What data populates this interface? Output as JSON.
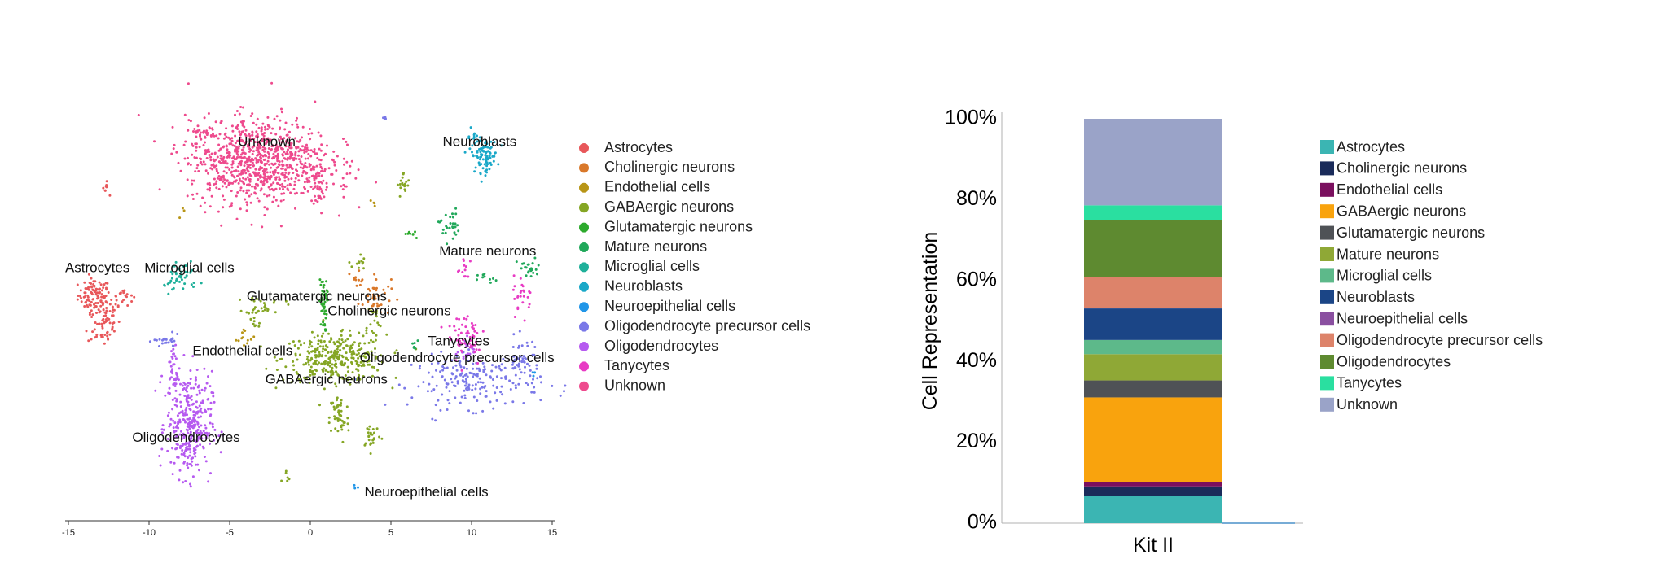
{
  "chart_data": [
    {
      "type": "scatter",
      "title": "",
      "xlabel": "",
      "ylabel": "",
      "xlim": [
        -15,
        15
      ],
      "x_ticks": [
        "-15",
        "-10",
        "-5",
        "0",
        "5",
        "10",
        "15"
      ],
      "legend_position": "right",
      "grid": false,
      "series": [
        {
          "name": "Astrocytes",
          "color": "#E8575A",
          "label": "Astrocytes",
          "clusters": [
            {
              "cx": -13.4,
              "cy": 5.6,
              "sx": 0.5,
              "sy": 0.5,
              "n": 90
            },
            {
              "cx": -12.8,
              "cy": 4.2,
              "sx": 0.5,
              "sy": 0.9,
              "n": 80
            },
            {
              "cx": -11.6,
              "cy": 5.6,
              "sx": 0.3,
              "sy": 0.3,
              "n": 20
            },
            {
              "cx": -12.7,
              "cy": 12.0,
              "sx": 0.1,
              "sy": 0.2,
              "n": 8
            }
          ]
        },
        {
          "name": "Cholinergic neurons",
          "color": "#D9782A",
          "label": "Cholinergic neurons",
          "clusters": [
            {
              "cx": 4.0,
              "cy": 5.5,
              "sx": 0.5,
              "sy": 0.6,
              "n": 40
            },
            {
              "cx": 3.0,
              "cy": 6.8,
              "sx": 0.2,
              "sy": 0.3,
              "n": 10
            }
          ]
        },
        {
          "name": "Endothelial cells",
          "color": "#B89516",
          "label": "Endothelial cells",
          "clusters": [
            {
              "cx": -4.0,
              "cy": 3.0,
              "sx": 0.3,
              "sy": 0.3,
              "n": 12
            },
            {
              "cx": -8.0,
              "cy": 10.6,
              "sx": 0.1,
              "sy": 0.1,
              "n": 3
            },
            {
              "cx": 3.9,
              "cy": 11.0,
              "sx": 0.1,
              "sy": 0.2,
              "n": 4
            }
          ]
        },
        {
          "name": "GABAergic neurons",
          "color": "#85A624",
          "label": "GABAergic neurons",
          "clusters": [
            {
              "cx": 1.5,
              "cy": 1.8,
              "sx": 1.6,
              "sy": 0.7,
              "n": 320
            },
            {
              "cx": 1.8,
              "cy": -1.8,
              "sx": 0.3,
              "sy": 0.8,
              "n": 50
            },
            {
              "cx": 3.8,
              "cy": -2.8,
              "sx": 0.3,
              "sy": 0.4,
              "n": 25
            },
            {
              "cx": 5.8,
              "cy": 12.2,
              "sx": 0.2,
              "sy": 0.4,
              "n": 20
            },
            {
              "cx": 3.0,
              "cy": 7.5,
              "sx": 0.2,
              "sy": 0.3,
              "n": 12
            },
            {
              "cx": -2.8,
              "cy": 5.0,
              "sx": 0.6,
              "sy": 0.3,
              "n": 25
            },
            {
              "cx": -1.5,
              "cy": -5.2,
              "sx": 0.2,
              "sy": 0.2,
              "n": 6
            },
            {
              "cx": 3.8,
              "cy": 4.0,
              "sx": 0.3,
              "sy": 0.6,
              "n": 18
            },
            {
              "cx": -3.5,
              "cy": 4.2,
              "sx": 0.3,
              "sy": 0.5,
              "n": 15
            }
          ]
        },
        {
          "name": "Glutamatergic neurons",
          "color": "#2DAA2D",
          "label": "Glutamatergic neurons",
          "clusters": [
            {
              "cx": 0.8,
              "cy": 5.0,
              "sx": 0.12,
              "sy": 0.8,
              "n": 45
            },
            {
              "cx": 6.3,
              "cy": 9.3,
              "sx": 0.2,
              "sy": 0.2,
              "n": 8
            }
          ]
        },
        {
          "name": "Mature neurons",
          "color": "#20A85A",
          "label": "Mature neurons",
          "clusters": [
            {
              "cx": 8.6,
              "cy": 9.8,
              "sx": 0.3,
              "sy": 0.5,
              "n": 30
            },
            {
              "cx": 13.6,
              "cy": 7.2,
              "sx": 0.4,
              "sy": 0.3,
              "n": 25
            },
            {
              "cx": 11.0,
              "cy": 6.5,
              "sx": 0.3,
              "sy": 0.2,
              "n": 10
            },
            {
              "cx": 6.5,
              "cy": 2.5,
              "sx": 0.2,
              "sy": 0.2,
              "n": 6
            }
          ]
        },
        {
          "name": "Microglial cells",
          "color": "#1FB09A",
          "label": "Microglial cells",
          "clusters": [
            {
              "cx": -7.9,
              "cy": 6.8,
              "sx": 0.5,
              "sy": 0.5,
              "n": 40
            },
            {
              "cx": -8.9,
              "cy": 6.2,
              "sx": 0.2,
              "sy": 0.2,
              "n": 8
            }
          ]
        },
        {
          "name": "Neuroblasts",
          "color": "#1AA8C8",
          "label": "Neuroblasts",
          "clusters": [
            {
              "cx": 10.8,
              "cy": 14.0,
              "sx": 0.4,
              "sy": 0.5,
              "n": 90
            },
            {
              "cx": 10.0,
              "cy": 15.2,
              "sx": 0.2,
              "sy": 0.3,
              "n": 10
            }
          ]
        },
        {
          "name": "Neuroepithelial cells",
          "color": "#2196E8",
          "label": "Neuroepithelial cells",
          "clusters": [
            {
              "cx": 2.9,
              "cy": -6.0,
              "sx": 0.1,
              "sy": 0.1,
              "n": 3
            },
            {
              "cx": 13.8,
              "cy": 0.8,
              "sx": 0.1,
              "sy": 0.1,
              "n": 3
            }
          ]
        },
        {
          "name": "Oligodendrocyte precursor cells",
          "color": "#7A78E8",
          "label": "Oligodendrocyte precursor cells",
          "clusters": [
            {
              "cx": 10.3,
              "cy": 0.4,
              "sx": 2.0,
              "sy": 0.8,
              "n": 200
            },
            {
              "cx": 13.2,
              "cy": 1.8,
              "sx": 0.5,
              "sy": 0.6,
              "n": 40
            },
            {
              "cx": -8.9,
              "cy": 2.8,
              "sx": 0.4,
              "sy": 0.2,
              "n": 25
            },
            {
              "cx": 4.6,
              "cy": 16.2,
              "sx": 0.1,
              "sy": 0.1,
              "n": 4
            }
          ]
        },
        {
          "name": "Oligodendrocytes",
          "color": "#B65AF0",
          "label": "Oligodendrocytes",
          "clusters": [
            {
              "cx": -7.5,
              "cy": -2.2,
              "sx": 0.7,
              "sy": 1.6,
              "n": 320
            },
            {
              "cx": -8.5,
              "cy": 0.9,
              "sx": 0.15,
              "sy": 0.9,
              "n": 40
            },
            {
              "cx": 9.6,
              "cy": 2.3,
              "sx": 0.3,
              "sy": 0.4,
              "n": 20
            }
          ]
        },
        {
          "name": "Tanycytes",
          "color": "#E83BC4",
          "label": "Tanycytes",
          "clusters": [
            {
              "cx": 9.7,
              "cy": 3.2,
              "sx": 0.6,
              "sy": 0.9,
              "n": 55
            },
            {
              "cx": 13.2,
              "cy": 5.6,
              "sx": 0.3,
              "sy": 0.6,
              "n": 25
            },
            {
              "cx": 9.6,
              "cy": 7.0,
              "sx": 0.3,
              "sy": 0.5,
              "n": 12
            }
          ]
        },
        {
          "name": "Unknown",
          "color": "#EE4A8D",
          "label": "Unknown",
          "clusters": [
            {
              "cx": -3.2,
              "cy": 13.7,
              "sx": 2.2,
              "sy": 1.3,
              "n": 900
            },
            {
              "cx": 0.5,
              "cy": 12.1,
              "sx": 0.3,
              "sy": 0.5,
              "n": 35
            },
            {
              "cx": -6.6,
              "cy": 15.2,
              "sx": 0.4,
              "sy": 0.4,
              "n": 25
            },
            {
              "cx": -7.0,
              "cy": 14.6,
              "sx": 0.1,
              "sy": 0.1,
              "n": 4
            },
            {
              "cx": 2.0,
              "cy": 12.1,
              "sx": 0.1,
              "sy": 0.2,
              "n": 4
            }
          ]
        }
      ],
      "annotations": [
        {
          "text": "Unknown",
          "x": -2.7,
          "y": 14.8
        },
        {
          "text": "Neuroblasts",
          "x": 10.5,
          "y": 14.8
        },
        {
          "text": "Astrocytes",
          "x": -13.2,
          "y": 7.2
        },
        {
          "text": "Microglial cells",
          "x": -7.5,
          "y": 7.2
        },
        {
          "text": "Mature neurons",
          "x": 11.0,
          "y": 8.2
        },
        {
          "text": "Glutamatergic neurons",
          "x": 0.4,
          "y": 5.5
        },
        {
          "text": "Cholinergic neurons",
          "x": 4.9,
          "y": 4.6
        },
        {
          "text": "Tanycytes",
          "x": 9.2,
          "y": 2.8
        },
        {
          "text": "Endothelial cells",
          "x": -4.2,
          "y": 2.2
        },
        {
          "text": "Oligodendrocyte precursor cells",
          "x": 9.1,
          "y": 1.8
        },
        {
          "text": "GABAergic neurons",
          "x": 1.0,
          "y": 0.5
        },
        {
          "text": "Oligodendrocytes",
          "x": -7.7,
          "y": -3.0
        },
        {
          "text": "Neuroepithelial cells",
          "x": 7.2,
          "y": -6.3
        }
      ]
    },
    {
      "type": "bar",
      "stacked": true,
      "title": "",
      "xlabel": "",
      "ylabel": "Cell Representation",
      "categories": [
        "Kit II"
      ],
      "ylim": [
        0,
        100
      ],
      "y_ticks": [
        "0%",
        "20%",
        "40%",
        "60%",
        "80%",
        "100%"
      ],
      "legend_position": "right",
      "grid": false,
      "series": [
        {
          "name": "Astrocytes",
          "values": [
            6.8
          ],
          "color": "#3BB5B3"
        },
        {
          "name": "Cholinergic neurons",
          "values": [
            2.3
          ],
          "color": "#1A2B5A"
        },
        {
          "name": "Endothelial cells",
          "values": [
            1.0
          ],
          "color": "#7A0F5E"
        },
        {
          "name": "GABAergic neurons",
          "values": [
            21.0
          ],
          "color": "#F9A30D"
        },
        {
          "name": "Glutamatergic neurons",
          "values": [
            4.2
          ],
          "color": "#4F5256"
        },
        {
          "name": "Mature neurons",
          "values": [
            6.5
          ],
          "color": "#8FA836"
        },
        {
          "name": "Microglial cells",
          "values": [
            3.5
          ],
          "color": "#5DB98A"
        },
        {
          "name": "Neuroblasts",
          "values": [
            7.8
          ],
          "color": "#1B4586"
        },
        {
          "name": "Neuroepithelial cells",
          "values": [
            0.2
          ],
          "color": "#8A4FA0"
        },
        {
          "name": "Oligodendrocyte precursor cells",
          "values": [
            7.5
          ],
          "color": "#DD836A"
        },
        {
          "name": "Oligodendrocytes",
          "values": [
            14.2
          ],
          "color": "#5E8A30"
        },
        {
          "name": "Tanycytes",
          "values": [
            3.6
          ],
          "color": "#2ADFA0"
        },
        {
          "name": "Unknown",
          "values": [
            21.4
          ],
          "color": "#9AA3C8"
        }
      ]
    }
  ]
}
